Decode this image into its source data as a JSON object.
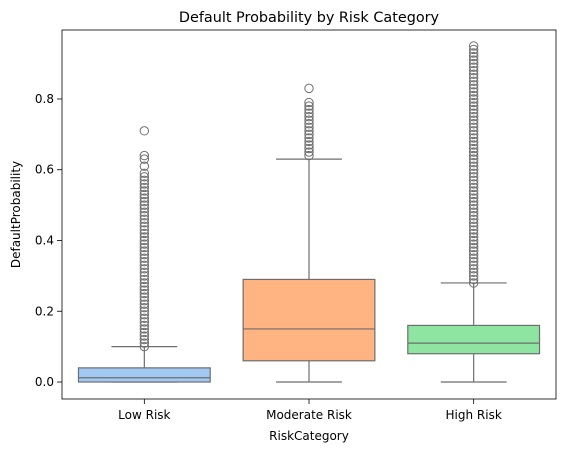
{
  "chart_data": {
    "type": "boxplot",
    "title": "Default Probability by Risk Category",
    "xlabel": "RiskCategory",
    "ylabel": "DefaultProbability",
    "ylim": [
      -0.048,
      0.995
    ],
    "yticks": [
      0.0,
      0.2,
      0.4,
      0.6,
      0.8
    ],
    "ytick_labels": [
      "0.0",
      "0.2",
      "0.4",
      "0.6",
      "0.8"
    ],
    "grid": false,
    "legend": "none",
    "categories": [
      "Low Risk",
      "Moderate Risk",
      "High Risk"
    ],
    "boxes": [
      {
        "category": "Low Risk",
        "color": "#a1c9f4",
        "whisker_low": 0.0,
        "q1": 0.0,
        "median": 0.012,
        "q3": 0.04,
        "whisker_high": 0.1,
        "outliers": [
          0.1,
          0.11,
          0.12,
          0.13,
          0.14,
          0.15,
          0.16,
          0.17,
          0.18,
          0.19,
          0.2,
          0.21,
          0.22,
          0.23,
          0.24,
          0.25,
          0.26,
          0.27,
          0.28,
          0.29,
          0.3,
          0.31,
          0.32,
          0.33,
          0.34,
          0.35,
          0.36,
          0.37,
          0.38,
          0.39,
          0.4,
          0.41,
          0.42,
          0.43,
          0.44,
          0.45,
          0.46,
          0.47,
          0.48,
          0.49,
          0.5,
          0.51,
          0.52,
          0.53,
          0.54,
          0.55,
          0.56,
          0.57,
          0.58,
          0.59,
          0.61,
          0.63,
          0.64,
          0.71
        ]
      },
      {
        "category": "Moderate Risk",
        "color": "#ffb482",
        "whisker_low": 0.0,
        "q1": 0.06,
        "median": 0.15,
        "q3": 0.29,
        "whisker_high": 0.63,
        "outliers": [
          0.64,
          0.65,
          0.66,
          0.67,
          0.68,
          0.69,
          0.7,
          0.71,
          0.72,
          0.73,
          0.74,
          0.75,
          0.76,
          0.77,
          0.78,
          0.79,
          0.83
        ]
      },
      {
        "category": "High Risk",
        "color": "#8de5a1",
        "whisker_low": 0.0,
        "q1": 0.08,
        "median": 0.11,
        "q3": 0.16,
        "whisker_high": 0.28,
        "outliers": [
          0.28,
          0.29,
          0.3,
          0.31,
          0.32,
          0.33,
          0.34,
          0.35,
          0.36,
          0.37,
          0.38,
          0.39,
          0.4,
          0.41,
          0.42,
          0.43,
          0.44,
          0.45,
          0.46,
          0.47,
          0.48,
          0.49,
          0.5,
          0.51,
          0.52,
          0.53,
          0.54,
          0.55,
          0.56,
          0.57,
          0.58,
          0.59,
          0.6,
          0.61,
          0.62,
          0.63,
          0.64,
          0.65,
          0.66,
          0.67,
          0.68,
          0.69,
          0.7,
          0.71,
          0.72,
          0.73,
          0.74,
          0.75,
          0.76,
          0.77,
          0.78,
          0.79,
          0.8,
          0.81,
          0.82,
          0.83,
          0.84,
          0.85,
          0.86,
          0.87,
          0.88,
          0.89,
          0.9,
          0.91,
          0.92,
          0.93,
          0.94,
          0.95
        ]
      }
    ],
    "line_color": "#6e6e6e"
  }
}
